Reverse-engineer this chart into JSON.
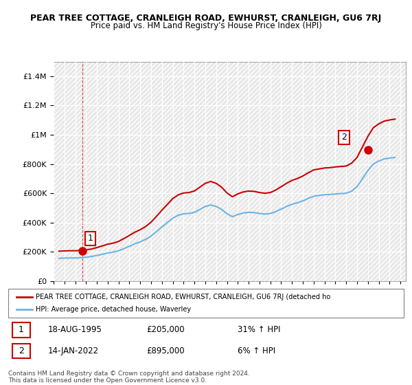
{
  "title": "PEAR TREE COTTAGE, CRANLEIGH ROAD, EWHURST, CRANLEIGH, GU6 7RJ",
  "subtitle": "Price paid vs. HM Land Registry's House Price Index (HPI)",
  "hpi_color": "#6cb4e4",
  "price_color": "#cc0000",
  "background_color": "#ffffff",
  "plot_bg_color": "#f0f0f0",
  "hatch_color": "#d8d8d8",
  "ylim": [
    0,
    1500000
  ],
  "yticks": [
    0,
    200000,
    400000,
    600000,
    800000,
    1000000,
    1200000,
    1400000
  ],
  "ytick_labels": [
    "£0",
    "£200K",
    "£400K",
    "£600K",
    "£800K",
    "£1M",
    "£1.2M",
    "£1.4M"
  ],
  "transactions": [
    {
      "label": "1",
      "date": "18-AUG-1995",
      "price": 205000,
      "pct": "31%",
      "direction": "↑",
      "x_year": 1995.63
    },
    {
      "label": "2",
      "date": "14-JAN-2022",
      "price": 895000,
      "pct": "6%",
      "direction": "↑",
      "x_year": 2022.04
    }
  ],
  "legend_price_label": "PEAR TREE COTTAGE, CRANLEIGH ROAD, EWHURST, CRANLEIGH, GU6 7RJ (detached ho",
  "legend_hpi_label": "HPI: Average price, detached house, Waverley",
  "footer": "Contains HM Land Registry data © Crown copyright and database right 2024.\nThis data is licensed under the Open Government Licence v3.0.",
  "xmin": 1993,
  "xmax": 2025.5,
  "hpi_data": {
    "years": [
      1993.5,
      1994.0,
      1994.5,
      1995.0,
      1995.5,
      1996.0,
      1996.5,
      1997.0,
      1997.5,
      1998.0,
      1998.5,
      1999.0,
      1999.5,
      2000.0,
      2000.5,
      2001.0,
      2001.5,
      2002.0,
      2002.5,
      2003.0,
      2003.5,
      2004.0,
      2004.5,
      2005.0,
      2005.5,
      2006.0,
      2006.5,
      2007.0,
      2007.5,
      2008.0,
      2008.5,
      2009.0,
      2009.5,
      2010.0,
      2010.5,
      2011.0,
      2011.5,
      2012.0,
      2012.5,
      2013.0,
      2013.5,
      2014.0,
      2014.5,
      2015.0,
      2015.5,
      2016.0,
      2016.5,
      2017.0,
      2017.5,
      2018.0,
      2018.5,
      2019.0,
      2019.5,
      2020.0,
      2020.5,
      2021.0,
      2021.5,
      2022.0,
      2022.5,
      2023.0,
      2023.5,
      2024.0,
      2024.5
    ],
    "values": [
      155000,
      157000,
      158000,
      158000,
      160000,
      163000,
      168000,
      175000,
      183000,
      192000,
      198000,
      207000,
      222000,
      238000,
      255000,
      268000,
      285000,
      308000,
      338000,
      370000,
      400000,
      430000,
      450000,
      460000,
      462000,
      470000,
      490000,
      510000,
      520000,
      510000,
      490000,
      460000,
      440000,
      455000,
      465000,
      470000,
      468000,
      462000,
      458000,
      462000,
      475000,
      492000,
      510000,
      525000,
      535000,
      548000,
      565000,
      580000,
      585000,
      590000,
      592000,
      595000,
      598000,
      600000,
      615000,
      645000,
      700000,
      755000,
      800000,
      820000,
      835000,
      840000,
      845000
    ]
  },
  "price_line_data": {
    "years": [
      1993.5,
      1994.0,
      1994.5,
      1995.0,
      1995.5,
      1996.0,
      1996.5,
      1997.0,
      1997.5,
      1998.0,
      1998.5,
      1999.0,
      1999.5,
      2000.0,
      2000.5,
      2001.0,
      2001.5,
      2002.0,
      2002.5,
      2003.0,
      2003.5,
      2004.0,
      2004.5,
      2005.0,
      2005.5,
      2006.0,
      2006.5,
      2007.0,
      2007.5,
      2008.0,
      2008.5,
      2009.0,
      2009.5,
      2010.0,
      2010.5,
      2011.0,
      2011.5,
      2012.0,
      2012.5,
      2013.0,
      2013.5,
      2014.0,
      2014.5,
      2015.0,
      2015.5,
      2016.0,
      2016.5,
      2017.0,
      2017.5,
      2018.0,
      2018.5,
      2019.0,
      2019.5,
      2020.0,
      2020.5,
      2021.0,
      2021.5,
      2022.0,
      2022.5,
      2023.0,
      2023.5,
      2024.0,
      2024.5
    ],
    "values": [
      204000,
      206000,
      207000,
      207000,
      209000,
      213000,
      219000,
      229000,
      240000,
      252000,
      259000,
      271000,
      291000,
      312000,
      334000,
      351000,
      373000,
      403000,
      443000,
      485000,
      524000,
      564000,
      589000,
      602000,
      605000,
      616000,
      642000,
      668000,
      681000,
      668000,
      642000,
      602000,
      576000,
      596000,
      609000,
      615000,
      613000,
      605000,
      600000,
      605000,
      622000,
      645000,
      668000,
      688000,
      701000,
      718000,
      740000,
      760000,
      766000,
      773000,
      775000,
      780000,
      783000,
      786000,
      806000,
      845000,
      917000,
      989000,
      1048000,
      1074000,
      1093000,
      1101000,
      1107000
    ]
  }
}
